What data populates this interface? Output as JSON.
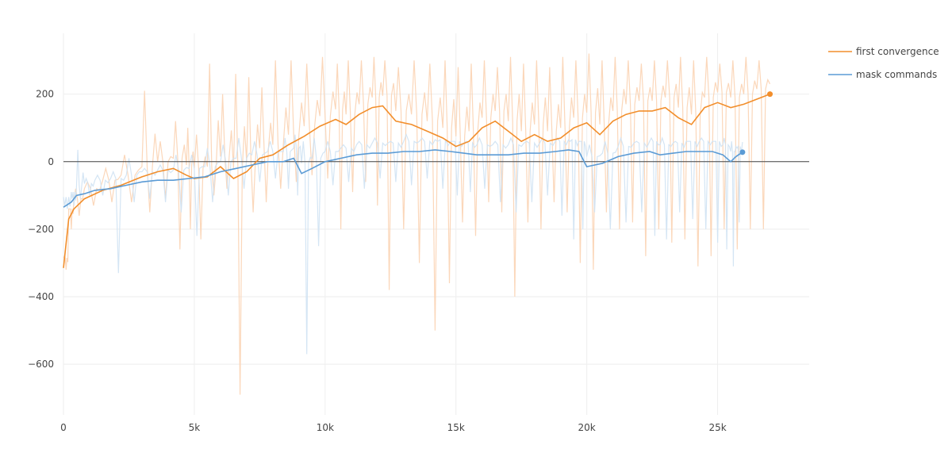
{
  "chart_data": {
    "type": "line",
    "title": "",
    "xlabel": "",
    "ylabel": "",
    "xlim": [
      0,
      28500
    ],
    "ylim": [
      -750,
      380
    ],
    "x_ticks": [
      0,
      5000,
      10000,
      15000,
      20000,
      25000
    ],
    "x_tick_labels": [
      "0",
      "5k",
      "10k",
      "15k",
      "20k",
      "25k"
    ],
    "y_ticks": [
      200,
      0,
      -200,
      -400,
      -600
    ],
    "y_tick_labels": [
      "200",
      "0",
      "−200",
      "−400",
      "−600"
    ],
    "grid": true,
    "zero_line": true,
    "legend_position": "top-right",
    "series": [
      {
        "name": "first convergence",
        "color": "#f28e2b",
        "raw_color": "#fbd3b3",
        "x": [
          0,
          200,
          400,
          800,
          1500,
          2200,
          3000,
          3600,
          4200,
          4700,
          5000,
          5500,
          6000,
          6500,
          7000,
          7500,
          8000,
          8600,
          9200,
          9800,
          10400,
          10800,
          11300,
          11800,
          12200,
          12700,
          13300,
          13900,
          14500,
          15000,
          15500,
          16000,
          16500,
          17000,
          17500,
          18000,
          18500,
          19000,
          19500,
          20000,
          20500,
          21000,
          21500,
          22000,
          22500,
          23000,
          23500,
          24000,
          24500,
          25000,
          25500,
          26000,
          26500,
          27000
        ],
        "smoothed": [
          -315,
          -170,
          -140,
          -110,
          -85,
          -70,
          -45,
          -30,
          -20,
          -40,
          -50,
          -45,
          -15,
          -50,
          -30,
          10,
          20,
          50,
          75,
          105,
          125,
          110,
          140,
          160,
          165,
          120,
          110,
          90,
          70,
          45,
          60,
          100,
          120,
          90,
          60,
          80,
          60,
          70,
          100,
          115,
          80,
          120,
          140,
          150,
          150,
          160,
          130,
          110,
          160,
          175,
          160,
          170,
          185,
          200
        ],
        "raw_low": [
          -320,
          -200,
          -160,
          -130,
          -120,
          -120,
          -150,
          -110,
          -260,
          -200,
          -230,
          -100,
          -80,
          -690,
          -150,
          -120,
          -80,
          -60,
          -40,
          -50,
          -200,
          -90,
          -60,
          -130,
          -380,
          -200,
          -300,
          -500,
          -360,
          -180,
          -220,
          -120,
          -150,
          -400,
          -180,
          -200,
          -120,
          -150,
          -300,
          -320,
          -150,
          -200,
          -180,
          -280,
          -200,
          -240,
          -230,
          -310,
          -280,
          -200,
          -260,
          -200,
          -200,
          -190
        ],
        "raw_high": [
          -280,
          -140,
          -80,
          -60,
          -20,
          20,
          210,
          60,
          120,
          100,
          80,
          290,
          200,
          260,
          250,
          220,
          300,
          300,
          290,
          310,
          290,
          300,
          300,
          310,
          300,
          280,
          300,
          290,
          300,
          280,
          290,
          300,
          280,
          310,
          290,
          300,
          280,
          310,
          300,
          320,
          300,
          310,
          300,
          290,
          300,
          300,
          310,
          300,
          310,
          290,
          300,
          310,
          300,
          210
        ]
      },
      {
        "name": "mask commands",
        "color": "#5b9bd5",
        "raw_color": "#cfe2f3",
        "x": [
          0,
          300,
          500,
          800,
          1200,
          1800,
          2400,
          3000,
          3600,
          4200,
          4800,
          5400,
          6000,
          6600,
          7200,
          7800,
          8400,
          8800,
          9100,
          9500,
          10000,
          10600,
          11200,
          11800,
          12400,
          13000,
          13600,
          14200,
          14800,
          15300,
          15800,
          16400,
          17000,
          17600,
          18200,
          18800,
          19300,
          19700,
          20000,
          20600,
          21200,
          21800,
          22400,
          22800,
          23300,
          23800,
          24300,
          24800,
          25200,
          25500,
          25700,
          25950
        ],
        "smoothed": [
          -135,
          -120,
          -100,
          -95,
          -85,
          -80,
          -70,
          -60,
          -55,
          -55,
          -50,
          -45,
          -30,
          -20,
          -10,
          0,
          0,
          10,
          -35,
          -20,
          0,
          10,
          20,
          25,
          25,
          30,
          30,
          35,
          30,
          25,
          20,
          20,
          20,
          25,
          25,
          30,
          35,
          30,
          -15,
          -5,
          15,
          25,
          30,
          20,
          25,
          30,
          30,
          30,
          20,
          0,
          15,
          28
        ],
        "raw_low": [
          -140,
          -130,
          -110,
          -100,
          -100,
          -330,
          -120,
          -110,
          -120,
          -150,
          -220,
          -120,
          -100,
          -80,
          -60,
          -50,
          -80,
          -100,
          -570,
          -250,
          -70,
          -60,
          -80,
          -50,
          -60,
          -70,
          -50,
          -80,
          -100,
          -90,
          -80,
          -120,
          -150,
          -120,
          -100,
          -160,
          -230,
          -200,
          -150,
          -200,
          -180,
          -150,
          -220,
          -230,
          -150,
          -170,
          -200,
          -240,
          -260,
          -310,
          -180,
          -100
        ],
        "raw_high": [
          -130,
          -110,
          35,
          -50,
          -40,
          -30,
          10,
          -20,
          -10,
          20,
          20,
          40,
          50,
          70,
          60,
          60,
          70,
          80,
          60,
          70,
          60,
          50,
          60,
          70,
          60,
          80,
          70,
          60,
          60,
          60,
          70,
          60,
          70,
          60,
          70,
          70,
          60,
          60,
          50,
          60,
          70,
          60,
          70,
          70,
          60,
          60,
          70,
          60,
          70,
          60,
          40,
          30
        ]
      }
    ]
  }
}
